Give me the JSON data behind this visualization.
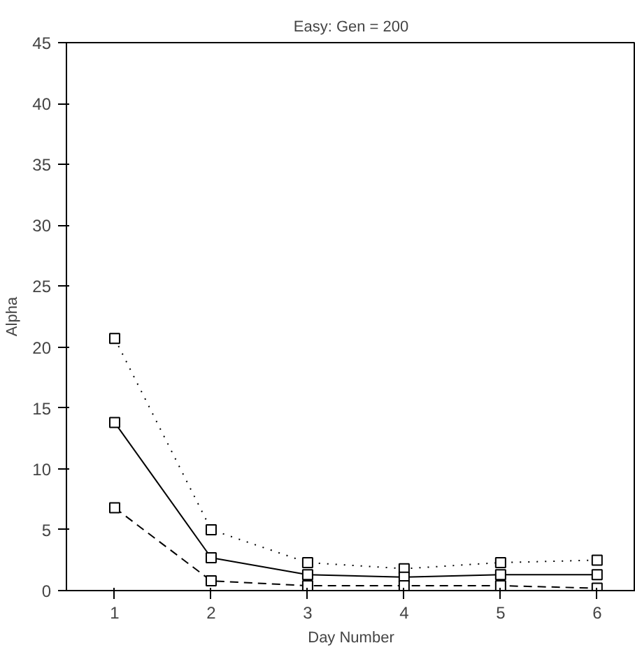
{
  "chart_data": {
    "type": "line",
    "title": "Easy: Gen = 200",
    "xlabel": "Day Number",
    "ylabel": "Alpha",
    "x": [
      1,
      2,
      3,
      4,
      5,
      6
    ],
    "series": [
      {
        "color": "#000000",
        "line_style": "dotted",
        "values": [
          20.7,
          5.0,
          2.3,
          1.8,
          2.3,
          2.5
        ]
      },
      {
        "color": "#000000",
        "line_style": "solid",
        "values": [
          13.8,
          2.7,
          1.3,
          1.1,
          1.3,
          1.3
        ]
      },
      {
        "color": "#000000",
        "line_style": "dashed",
        "values": [
          6.8,
          0.8,
          0.4,
          0.4,
          0.4,
          0.2
        ]
      }
    ],
    "xlim": [
      0.5,
      6.4
    ],
    "ylim": [
      0,
      45
    ],
    "xticks": [
      1,
      2,
      3,
      4,
      5,
      6
    ],
    "yticks": [
      0,
      5,
      10,
      15,
      20,
      25,
      30,
      35,
      40,
      45
    ],
    "marker": "square",
    "grid": false
  }
}
